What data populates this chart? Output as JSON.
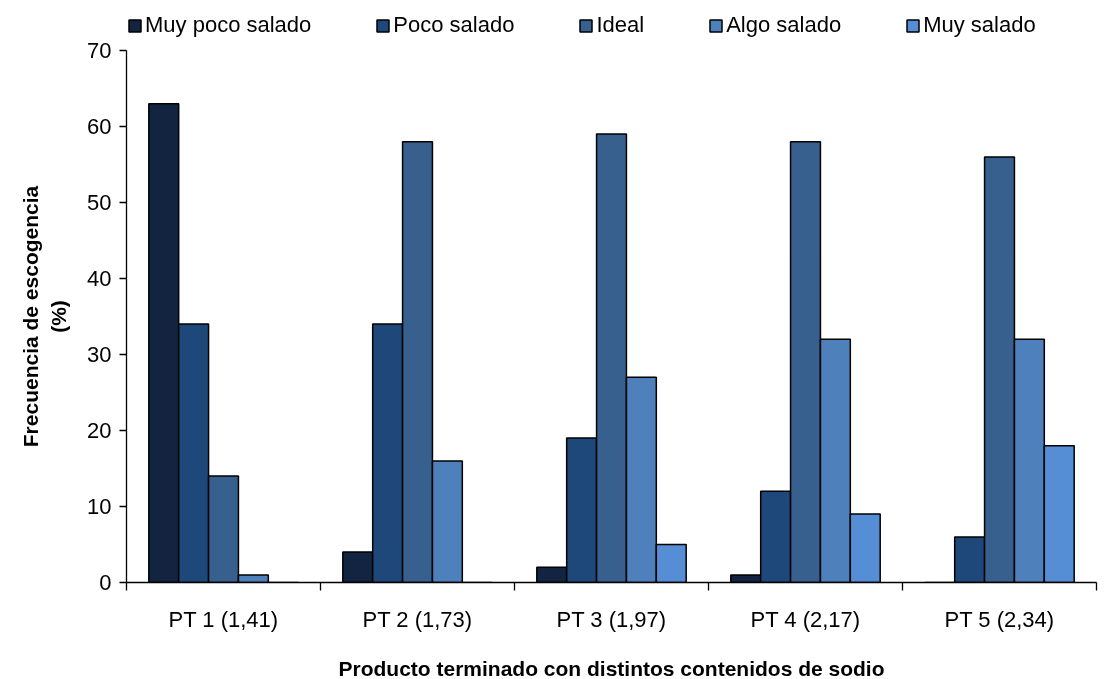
{
  "chart_data": {
    "type": "bar",
    "xlabel": "Producto terminado con distintos contenidos de sodio",
    "ylabel": "Frecuencia de escogencia (%)",
    "categories": [
      "PT 1 (1,41)",
      "PT 2 (1,73)",
      "PT 3 (1,97)",
      "PT 4 (2,17)",
      "PT 5 (2,34)"
    ],
    "series": [
      {
        "name": "Muy poco salado",
        "color": "#12243f",
        "values": [
          63,
          4,
          2,
          1,
          0
        ]
      },
      {
        "name": "Poco salado",
        "color": "#1f487a",
        "values": [
          34,
          34,
          19,
          12,
          6
        ]
      },
      {
        "name": "Ideal",
        "color": "#37608f",
        "values": [
          14,
          58,
          59,
          58,
          56
        ]
      },
      {
        "name": "Algo salado",
        "color": "#4e80bb",
        "values": [
          1,
          16,
          27,
          32,
          32
        ]
      },
      {
        "name": "Muy salado",
        "color": "#558ed5",
        "values": [
          0,
          0,
          5,
          9,
          18
        ]
      }
    ],
    "ylim": [
      0,
      70
    ],
    "yticks": [
      0,
      10,
      20,
      30,
      40,
      50,
      60,
      70
    ],
    "grid": false,
    "legend": "top"
  }
}
